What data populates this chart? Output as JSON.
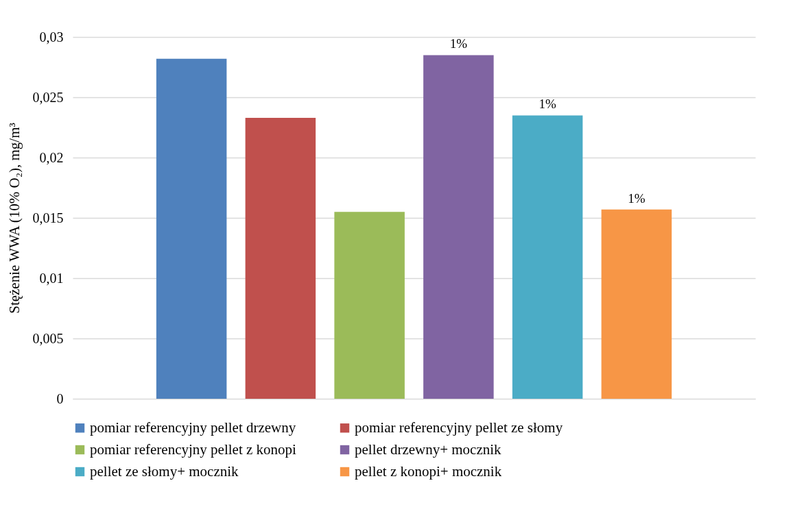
{
  "chart_data": {
    "type": "bar",
    "ylabel": "Stężenie WWA (10% O₂), mg/m³",
    "categories": [
      null
    ],
    "series": [
      {
        "name": "pomiar referencyjny pellet drzewny",
        "color": "#4f81bd",
        "values": [
          0.0282
        ]
      },
      {
        "name": "pomiar referencyjny pellet ze słomy",
        "color": "#c0504d",
        "values": [
          0.0233
        ]
      },
      {
        "name": "pomiar referencyjny pellet z konopi",
        "color": "#9bbb59",
        "values": [
          0.0155
        ]
      },
      {
        "name": "pellet drzewny+ mocznik",
        "color": "#8064a2",
        "values": [
          0.0285
        ]
      },
      {
        "name": "pellet ze słomy+ mocznik",
        "color": "#4bacc6",
        "values": [
          0.0235
        ]
      },
      {
        "name": "pellet z konopi+ mocznik",
        "color": "#f79646",
        "values": [
          0.0157
        ]
      }
    ],
    "annotations": [
      {
        "text": "1%",
        "y": 0.0285
      },
      {
        "text": "1%",
        "y": 0.0235
      },
      {
        "text": "1%",
        "y": 0.0157
      }
    ],
    "ylim": [
      0,
      0.03
    ],
    "yticks": [
      {
        "value": 0,
        "label": "0"
      },
      {
        "value": 0.005,
        "label": "0,005"
      },
      {
        "value": 0.01,
        "label": "0,01"
      },
      {
        "value": 0.015,
        "label": "0,015"
      },
      {
        "value": 0.02,
        "label": "0,02"
      },
      {
        "value": 0.025,
        "label": "0,025"
      },
      {
        "value": 0.03,
        "label": "0,03"
      }
    ],
    "grid": "y",
    "legend": "bottom"
  }
}
